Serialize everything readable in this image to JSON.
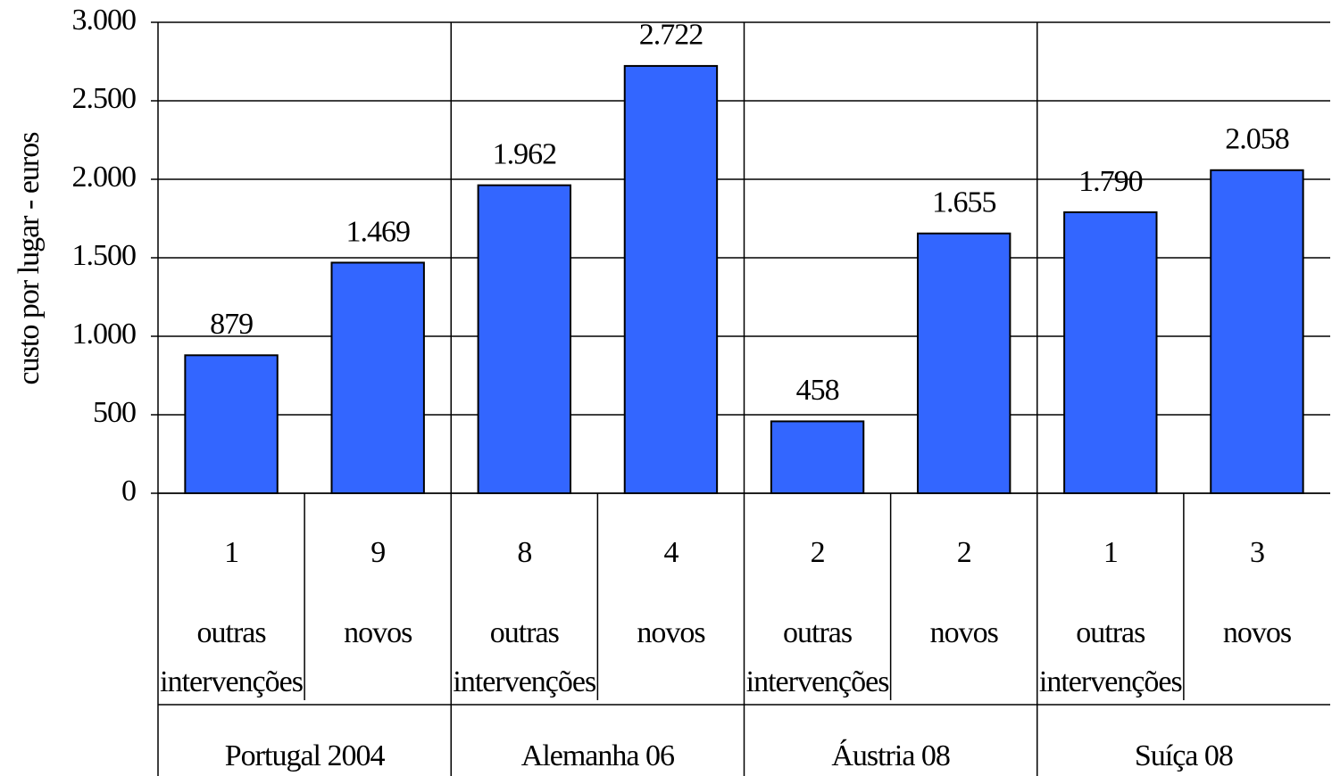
{
  "chart_data": {
    "type": "bar",
    "y_axis_label": "custo por lugar - euros",
    "categories": [
      "1",
      "9",
      "8",
      "4",
      "2",
      "2",
      "1",
      "3"
    ],
    "subcategories": [
      "outras intervenções",
      "novos",
      "outras intervenções",
      "novos",
      "outras intervenções",
      "novos",
      "outras intervenções",
      "novos"
    ],
    "groups": [
      "Portugal 2004",
      "Alemanha 06",
      "Áustria 08",
      "Suíça 08"
    ],
    "values": [
      879,
      1469,
      1962,
      2722,
      458,
      1655,
      1790,
      2058
    ],
    "value_labels": [
      "879",
      "1.469",
      "1.962",
      "2.722",
      "458",
      "1.655",
      "1.790",
      "2.058"
    ],
    "color": "#3366ff",
    "ylim": [
      0,
      3000
    ],
    "yticks": [
      0,
      500,
      {
        "value": 1000,
        "label": "1.000"
      },
      {
        "value": 1500,
        "label": "1.500"
      },
      {
        "value": 2000,
        "label": "2.000"
      },
      {
        "value": 2500,
        "label": "2.500"
      },
      {
        "value": 3000,
        "label": "3.000"
      }
    ],
    "grid": true
  }
}
